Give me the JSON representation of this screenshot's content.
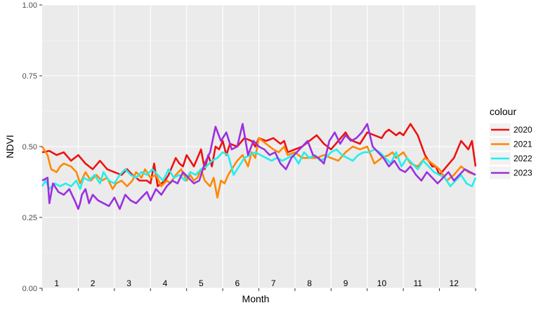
{
  "chart_data": {
    "type": "line",
    "xlabel": "Month",
    "ylabel": "NDVI",
    "xlim": [
      0,
      12
    ],
    "ylim": [
      0,
      1
    ],
    "y_ticks": [
      "0.00",
      "0.25",
      "0.50",
      "0.75",
      "1.00"
    ],
    "y_tick_values": [
      0,
      0.25,
      0.5,
      0.75,
      1
    ],
    "month_labels": [
      "1",
      "2",
      "3",
      "4",
      "5",
      "6",
      "7",
      "8",
      "9",
      "10",
      "11",
      "12"
    ],
    "grid": true,
    "legend_position": "right",
    "legend_title": "colour",
    "series": [
      {
        "name": "2020",
        "color": "#ee1111",
        "x": [
          0.0,
          0.2,
          0.4,
          0.6,
          0.8,
          1.0,
          1.2,
          1.4,
          1.6,
          1.8,
          2.0,
          2.2,
          2.35,
          2.5,
          2.7,
          2.9,
          3.0,
          3.1,
          3.2,
          3.4,
          3.5,
          3.6,
          3.7,
          3.8,
          3.9,
          4.0,
          4.2,
          4.4,
          4.5,
          4.6,
          4.7,
          4.8,
          4.9,
          5.0,
          5.1,
          5.2,
          5.4,
          5.6,
          5.8,
          5.9,
          6.0,
          6.2,
          6.4,
          6.6,
          6.7,
          6.8,
          7.0,
          7.2,
          7.4,
          7.6,
          7.8,
          8.0,
          8.2,
          8.4,
          8.5,
          8.6,
          8.8,
          9.0,
          9.2,
          9.4,
          9.5,
          9.6,
          9.7,
          9.8,
          9.85,
          9.9,
          10.0,
          10.2,
          10.4,
          10.6,
          10.8,
          10.9,
          11.0,
          11.2,
          11.4,
          11.6,
          11.8,
          11.9,
          12.0
        ],
        "values": [
          0.48,
          0.485,
          0.47,
          0.48,
          0.45,
          0.47,
          0.44,
          0.42,
          0.45,
          0.42,
          0.41,
          0.4,
          0.42,
          0.4,
          0.38,
          0.38,
          0.37,
          0.44,
          0.36,
          0.38,
          0.4,
          0.43,
          0.46,
          0.44,
          0.43,
          0.47,
          0.43,
          0.49,
          0.42,
          0.47,
          0.43,
          0.5,
          0.49,
          0.52,
          0.47,
          0.51,
          0.5,
          0.53,
          0.52,
          0.5,
          0.53,
          0.52,
          0.53,
          0.51,
          0.52,
          0.48,
          0.49,
          0.5,
          0.52,
          0.54,
          0.51,
          0.49,
          0.52,
          0.55,
          0.53,
          0.52,
          0.51,
          0.55,
          0.54,
          0.53,
          0.55,
          0.56,
          0.55,
          0.54,
          0.545,
          0.55,
          0.54,
          0.58,
          0.54,
          0.47,
          0.43,
          0.43,
          0.4,
          0.43,
          0.46,
          0.52,
          0.49,
          0.52,
          0.43
        ]
      },
      {
        "name": "2021",
        "color": "#ff8800",
        "x": [
          0.0,
          0.15,
          0.25,
          0.4,
          0.5,
          0.6,
          0.8,
          0.95,
          1.05,
          1.2,
          1.35,
          1.5,
          1.65,
          1.8,
          1.95,
          2.05,
          2.2,
          2.35,
          2.5,
          2.6,
          2.75,
          2.85,
          3.0,
          3.15,
          3.3,
          3.45,
          3.55,
          3.7,
          3.85,
          4.0,
          4.1,
          4.2,
          4.3,
          4.4,
          4.5,
          4.65,
          4.75,
          4.85,
          4.95,
          5.05,
          5.15,
          5.25,
          5.4,
          5.55,
          5.7,
          5.8,
          5.9,
          6.0,
          6.2,
          6.4,
          6.55,
          6.7,
          6.8,
          7.0,
          7.2,
          7.4,
          7.6,
          7.8,
          8.0,
          8.2,
          8.4,
          8.6,
          8.8,
          9.0,
          9.2,
          9.4,
          9.6,
          9.7,
          9.8,
          10.0,
          10.2,
          10.4,
          10.6,
          10.8,
          11.0,
          11.2,
          11.4,
          11.6,
          11.8,
          12.0
        ],
        "values": [
          0.5,
          0.47,
          0.42,
          0.41,
          0.43,
          0.44,
          0.43,
          0.41,
          0.37,
          0.41,
          0.38,
          0.4,
          0.38,
          0.39,
          0.35,
          0.37,
          0.38,
          0.36,
          0.38,
          0.41,
          0.39,
          0.42,
          0.39,
          0.4,
          0.36,
          0.38,
          0.37,
          0.4,
          0.42,
          0.38,
          0.4,
          0.38,
          0.39,
          0.42,
          0.38,
          0.36,
          0.39,
          0.32,
          0.38,
          0.37,
          0.4,
          0.42,
          0.45,
          0.47,
          0.43,
          0.48,
          0.46,
          0.53,
          0.51,
          0.49,
          0.48,
          0.5,
          0.47,
          0.48,
          0.46,
          0.46,
          0.46,
          0.47,
          0.46,
          0.45,
          0.48,
          0.5,
          0.49,
          0.5,
          0.44,
          0.46,
          0.47,
          0.48,
          0.46,
          0.48,
          0.44,
          0.43,
          0.46,
          0.44,
          0.42,
          0.38,
          0.4,
          0.43,
          0.41,
          0.4
        ]
      },
      {
        "name": "2022",
        "color": "#22eeee",
        "x": [
          0.0,
          0.1,
          0.2,
          0.35,
          0.5,
          0.65,
          0.8,
          0.95,
          1.05,
          1.15,
          1.3,
          1.45,
          1.6,
          1.7,
          1.85,
          2.0,
          2.15,
          2.3,
          2.45,
          2.6,
          2.75,
          2.9,
          3.05,
          3.2,
          3.35,
          3.5,
          3.65,
          3.8,
          3.95,
          4.1,
          4.25,
          4.4,
          4.55,
          4.7,
          4.85,
          5.0,
          5.15,
          5.3,
          5.45,
          5.6,
          5.75,
          5.9,
          6.05,
          6.2,
          6.35,
          6.5,
          6.65,
          6.8,
          6.95,
          7.1,
          7.25,
          7.4,
          7.55,
          7.7,
          7.85,
          8.0,
          8.15,
          8.3,
          8.45,
          8.6,
          8.75,
          8.9,
          9.05,
          9.2,
          9.35,
          9.5,
          9.65,
          9.8,
          9.95,
          10.1,
          10.25,
          10.4,
          10.55,
          10.7,
          10.85,
          11.0,
          11.15,
          11.3,
          11.45,
          11.6,
          11.75,
          11.9,
          12.0
        ],
        "values": [
          0.36,
          0.38,
          0.35,
          0.37,
          0.36,
          0.37,
          0.36,
          0.38,
          0.35,
          0.39,
          0.38,
          0.4,
          0.37,
          0.41,
          0.38,
          0.37,
          0.4,
          0.42,
          0.4,
          0.39,
          0.41,
          0.4,
          0.42,
          0.4,
          0.38,
          0.42,
          0.39,
          0.4,
          0.38,
          0.41,
          0.4,
          0.42,
          0.43,
          0.45,
          0.46,
          0.48,
          0.47,
          0.4,
          0.43,
          0.46,
          0.47,
          0.48,
          0.47,
          0.46,
          0.45,
          0.46,
          0.45,
          0.46,
          0.47,
          0.44,
          0.48,
          0.46,
          0.47,
          0.45,
          0.46,
          0.48,
          0.49,
          0.47,
          0.46,
          0.45,
          0.47,
          0.48,
          0.48,
          0.49,
          0.48,
          0.46,
          0.44,
          0.48,
          0.43,
          0.46,
          0.44,
          0.42,
          0.45,
          0.43,
          0.41,
          0.4,
          0.39,
          0.36,
          0.38,
          0.4,
          0.37,
          0.36,
          0.39
        ]
      },
      {
        "name": "2023",
        "color": "#9b30e0",
        "x": [
          0.0,
          0.15,
          0.2,
          0.3,
          0.45,
          0.6,
          0.75,
          0.9,
          1.0,
          1.05,
          1.1,
          1.2,
          1.3,
          1.4,
          1.55,
          1.7,
          1.85,
          2.0,
          2.15,
          2.3,
          2.45,
          2.6,
          2.75,
          2.9,
          3.0,
          3.15,
          3.3,
          3.45,
          3.6,
          3.75,
          3.9,
          4.05,
          4.2,
          4.35,
          4.5,
          4.65,
          4.8,
          4.95,
          5.1,
          5.25,
          5.4,
          5.55,
          5.7,
          5.85,
          6.0,
          6.15,
          6.3,
          6.45,
          6.6,
          6.75,
          6.9,
          7.05,
          7.2,
          7.35,
          7.5,
          7.65,
          7.8,
          7.95,
          8.1,
          8.25,
          8.4,
          8.55,
          8.7,
          8.85,
          9.0,
          9.15,
          9.3,
          9.45,
          9.55,
          9.6,
          9.75,
          9.9,
          10.05,
          10.2,
          10.35,
          10.5,
          10.65,
          10.8,
          10.95,
          11.1,
          11.25,
          11.4,
          11.55,
          11.7,
          11.85,
          12.0
        ],
        "values": [
          0.38,
          0.39,
          0.3,
          0.37,
          0.34,
          0.33,
          0.35,
          0.31,
          0.28,
          0.3,
          0.33,
          0.35,
          0.3,
          0.33,
          0.31,
          0.3,
          0.29,
          0.32,
          0.28,
          0.33,
          0.31,
          0.3,
          0.32,
          0.34,
          0.31,
          0.35,
          0.33,
          0.36,
          0.38,
          0.37,
          0.41,
          0.39,
          0.37,
          0.38,
          0.44,
          0.48,
          0.57,
          0.52,
          0.55,
          0.49,
          0.5,
          0.58,
          0.47,
          0.52,
          0.5,
          0.49,
          0.47,
          0.48,
          0.44,
          0.42,
          0.46,
          0.48,
          0.5,
          0.52,
          0.47,
          0.46,
          0.44,
          0.52,
          0.55,
          0.51,
          0.54,
          0.52,
          0.53,
          0.55,
          0.58,
          0.5,
          0.48,
          0.46,
          0.44,
          0.43,
          0.45,
          0.42,
          0.41,
          0.43,
          0.4,
          0.38,
          0.41,
          0.39,
          0.37,
          0.39,
          0.41,
          0.38,
          0.4,
          0.42,
          0.41,
          0.4
        ]
      }
    ]
  }
}
